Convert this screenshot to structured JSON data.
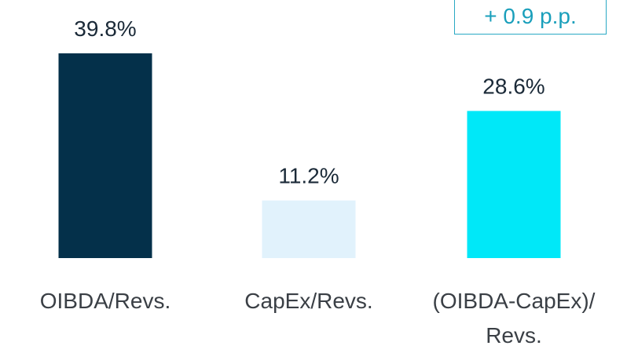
{
  "chart_data": {
    "type": "bar",
    "categories": [
      "OIBDA/Revs.",
      "CapEx/Revs.",
      "(OIBDA-CapEx)/ Revs."
    ],
    "values": [
      39.8,
      11.2,
      28.6
    ],
    "value_labels": [
      "39.8%",
      "11.2%",
      "28.6%"
    ],
    "colors": [
      "#04304a",
      "#e1f2fc",
      "#00e8f8"
    ],
    "annotation": "+ 0.9 p.p."
  }
}
